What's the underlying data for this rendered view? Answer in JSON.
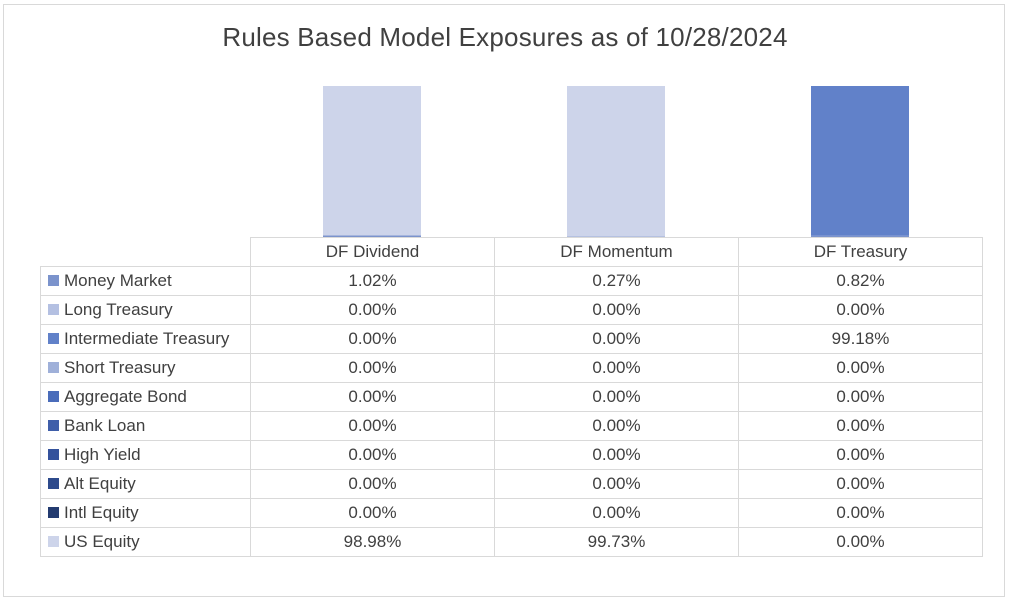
{
  "chart_data": {
    "type": "bar",
    "stacked": true,
    "title": "Rules Based Model Exposures as of 10/28/2024",
    "categories": [
      "DF Dividend",
      "DF Momentum",
      "DF Treasury"
    ],
    "ylim": [
      0,
      100
    ],
    "legend_placement": "data-table-left",
    "grid": false,
    "series": [
      {
        "name": "Money Market",
        "color": "#7b93cc",
        "values": [
          1.02,
          0.27,
          0.82
        ],
        "labels": [
          "1.02%",
          "0.27%",
          "0.82%"
        ]
      },
      {
        "name": "Long Treasury",
        "color": "#b4c0e2",
        "values": [
          0.0,
          0.0,
          0.0
        ],
        "labels": [
          "0.00%",
          "0.00%",
          "0.00%"
        ]
      },
      {
        "name": "Intermediate Treasury",
        "color": "#6181c9",
        "values": [
          0.0,
          0.0,
          99.18
        ],
        "labels": [
          "0.00%",
          "0.00%",
          "99.18%"
        ]
      },
      {
        "name": "Short Treasury",
        "color": "#9fb0d9",
        "values": [
          0.0,
          0.0,
          0.0
        ],
        "labels": [
          "0.00%",
          "0.00%",
          "0.00%"
        ]
      },
      {
        "name": "Aggregate Bond",
        "color": "#4a6cba",
        "values": [
          0.0,
          0.0,
          0.0
        ],
        "labels": [
          "0.00%",
          "0.00%",
          "0.00%"
        ]
      },
      {
        "name": "Bank Loan",
        "color": "#3f5ea9",
        "values": [
          0.0,
          0.0,
          0.0
        ],
        "labels": [
          "0.00%",
          "0.00%",
          "0.00%"
        ]
      },
      {
        "name": "High Yield",
        "color": "#34529c",
        "values": [
          0.0,
          0.0,
          0.0
        ],
        "labels": [
          "0.00%",
          "0.00%",
          "0.00%"
        ]
      },
      {
        "name": "Alt Equity",
        "color": "#2d4a8c",
        "values": [
          0.0,
          0.0,
          0.0
        ],
        "labels": [
          "0.00%",
          "0.00%",
          "0.00%"
        ]
      },
      {
        "name": "Intl Equity",
        "color": "#233b70",
        "values": [
          0.0,
          0.0,
          0.0
        ],
        "labels": [
          "0.00%",
          "0.00%",
          "0.00%"
        ]
      },
      {
        "name": "US Equity",
        "color": "#cdd4ea",
        "values": [
          98.98,
          99.73,
          0.0
        ],
        "labels": [
          "98.98%",
          "99.73%",
          "0.00%"
        ]
      }
    ]
  }
}
